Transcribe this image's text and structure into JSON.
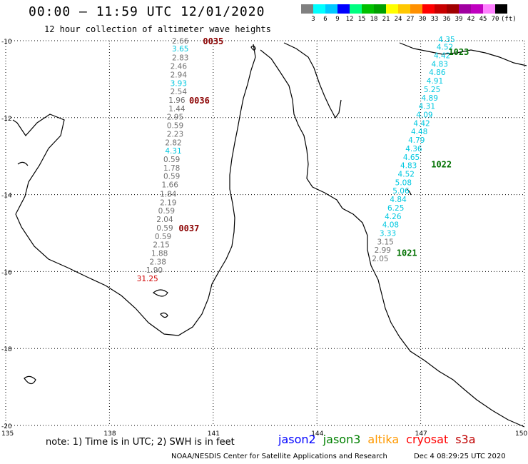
{
  "title": "00:00 – 11:59 UTC 12/01/2020",
  "subtitle": "12 hour collection of altimeter wave heights",
  "colorbar": {
    "labels": [
      "3",
      "6",
      "9",
      "12",
      "15",
      "18",
      "21",
      "24",
      "27",
      "30",
      "33",
      "36",
      "39",
      "42",
      "45",
      "70",
      "(ft)"
    ],
    "colors": [
      "#808080",
      "#00ffff",
      "#00c8ff",
      "#0000ff",
      "#00ff80",
      "#00c000",
      "#00a000",
      "#ffff00",
      "#ffc800",
      "#ff9000",
      "#ff0000",
      "#c80000",
      "#a00000",
      "#a000a0",
      "#c000c0",
      "#ff80ff",
      "#000000"
    ]
  },
  "axes": {
    "lat_labels": [
      "-10",
      "-12",
      "-14",
      "-16",
      "-18",
      "-20"
    ],
    "lon_labels": [
      "135",
      "138",
      "141",
      "144",
      "147",
      "150"
    ]
  },
  "tracks": [
    {
      "name": "western-pass",
      "color_default": "#707070",
      "points": [
        {
          "lat": -10.0,
          "lon": 140.05,
          "v": "2.66",
          "c": "#707070"
        },
        {
          "lat": -10.2,
          "lon": 140.05,
          "v": "3.65",
          "c": "#00c8e0"
        },
        {
          "lat": -10.44,
          "lon": 140.05,
          "v": "2.83",
          "c": "#707070"
        },
        {
          "lat": -10.66,
          "lon": 140.0,
          "v": "2.46",
          "c": "#707070"
        },
        {
          "lat": -10.88,
          "lon": 140.0,
          "v": "2.94",
          "c": "#707070"
        },
        {
          "lat": -11.1,
          "lon": 140.0,
          "v": "3.93",
          "c": "#00c8e0"
        },
        {
          "lat": -11.32,
          "lon": 140.0,
          "v": "2.54",
          "c": "#707070"
        },
        {
          "lat": -11.54,
          "lon": 139.95,
          "v": "1.96",
          "c": "#707070"
        },
        {
          "lat": -11.76,
          "lon": 139.95,
          "v": "1.44",
          "c": "#707070"
        },
        {
          "lat": -11.98,
          "lon": 139.9,
          "v": "2.95",
          "c": "#707070"
        },
        {
          "lat": -12.2,
          "lon": 139.9,
          "v": "0.59",
          "c": "#707070"
        },
        {
          "lat": -12.42,
          "lon": 139.9,
          "v": "2.23",
          "c": "#707070"
        },
        {
          "lat": -12.64,
          "lon": 139.85,
          "v": "2.82",
          "c": "#707070"
        },
        {
          "lat": -12.86,
          "lon": 139.85,
          "v": "4.31",
          "c": "#00c8e0"
        },
        {
          "lat": -13.08,
          "lon": 139.8,
          "v": "0.59",
          "c": "#707070"
        },
        {
          "lat": -13.3,
          "lon": 139.8,
          "v": "1.78",
          "c": "#707070"
        },
        {
          "lat": -13.52,
          "lon": 139.8,
          "v": "0.59",
          "c": "#707070"
        },
        {
          "lat": -13.74,
          "lon": 139.75,
          "v": "1.66",
          "c": "#707070"
        },
        {
          "lat": -13.98,
          "lon": 139.7,
          "v": "1.84",
          "c": "#707070"
        },
        {
          "lat": -14.2,
          "lon": 139.7,
          "v": "2.19",
          "c": "#707070"
        },
        {
          "lat": -14.42,
          "lon": 139.65,
          "v": "0.59",
          "c": "#707070"
        },
        {
          "lat": -14.64,
          "lon": 139.6,
          "v": "2.04",
          "c": "#707070"
        },
        {
          "lat": -14.86,
          "lon": 139.6,
          "v": "0.59",
          "c": "#707070"
        },
        {
          "lat": -15.08,
          "lon": 139.55,
          "v": "0.59",
          "c": "#707070"
        },
        {
          "lat": -15.3,
          "lon": 139.5,
          "v": "2.15",
          "c": "#707070"
        },
        {
          "lat": -15.52,
          "lon": 139.45,
          "v": "1.88",
          "c": "#707070"
        },
        {
          "lat": -15.74,
          "lon": 139.4,
          "v": "2.38",
          "c": "#707070"
        },
        {
          "lat": -15.96,
          "lon": 139.3,
          "v": "1.90",
          "c": "#707070"
        },
        {
          "lat": -16.18,
          "lon": 139.1,
          "v": "31.25",
          "c": "#d00000"
        }
      ],
      "time_labels": [
        {
          "lat": -10.0,
          "lon": 141.0,
          "t": "0035"
        },
        {
          "lat": -11.54,
          "lon": 140.6,
          "t": "0036"
        },
        {
          "lat": -14.86,
          "lon": 140.3,
          "t": "0037"
        }
      ],
      "time_color": "#8b0000"
    },
    {
      "name": "eastern-pass",
      "points": [
        {
          "lat": -9.96,
          "lon": 147.75,
          "v": "4.35",
          "c": "#00c8e0"
        },
        {
          "lat": -10.16,
          "lon": 147.7,
          "v": "4.52",
          "c": "#00c8e0"
        },
        {
          "lat": -10.38,
          "lon": 147.62,
          "v": "4.42",
          "c": "#00c8e0"
        },
        {
          "lat": -10.6,
          "lon": 147.55,
          "v": "4.83",
          "c": "#00c8e0"
        },
        {
          "lat": -10.82,
          "lon": 147.48,
          "v": "4.86",
          "c": "#00c8e0"
        },
        {
          "lat": -11.04,
          "lon": 147.41,
          "v": "4.91",
          "c": "#00c8e0"
        },
        {
          "lat": -11.26,
          "lon": 147.33,
          "v": "5.25",
          "c": "#00c8e0"
        },
        {
          "lat": -11.48,
          "lon": 147.26,
          "v": "4.89",
          "c": "#00c8e0"
        },
        {
          "lat": -11.7,
          "lon": 147.18,
          "v": "4.31",
          "c": "#00c8e0"
        },
        {
          "lat": -11.92,
          "lon": 147.11,
          "v": "4.09",
          "c": "#00c8e0"
        },
        {
          "lat": -12.14,
          "lon": 147.03,
          "v": "4.42",
          "c": "#00c8e0"
        },
        {
          "lat": -12.36,
          "lon": 146.96,
          "v": "4.48",
          "c": "#00c8e0"
        },
        {
          "lat": -12.58,
          "lon": 146.88,
          "v": "4.79",
          "c": "#00c8e0"
        },
        {
          "lat": -12.8,
          "lon": 146.8,
          "v": "4.36",
          "c": "#00c8e0"
        },
        {
          "lat": -13.02,
          "lon": 146.73,
          "v": "4.65",
          "c": "#00c8e0"
        },
        {
          "lat": -13.24,
          "lon": 146.65,
          "v": "4.83",
          "c": "#00c8e0"
        },
        {
          "lat": -13.46,
          "lon": 146.58,
          "v": "4.52",
          "c": "#00c8e0"
        },
        {
          "lat": -13.68,
          "lon": 146.5,
          "v": "5.08",
          "c": "#00c8e0"
        },
        {
          "lat": -13.9,
          "lon": 146.43,
          "v": "5.06",
          "c": "#00c8e0"
        },
        {
          "lat": -14.12,
          "lon": 146.35,
          "v": "4.84",
          "c": "#00c8e0"
        },
        {
          "lat": -14.34,
          "lon": 146.28,
          "v": "6.25",
          "c": "#00c8e0"
        },
        {
          "lat": -14.56,
          "lon": 146.2,
          "v": "4.26",
          "c": "#00c8e0"
        },
        {
          "lat": -14.78,
          "lon": 146.13,
          "v": "4.08",
          "c": "#00c8e0"
        },
        {
          "lat": -15.0,
          "lon": 146.05,
          "v": "3.33",
          "c": "#00c8e0"
        },
        {
          "lat": -15.22,
          "lon": 145.98,
          "v": "3.15",
          "c": "#707070"
        },
        {
          "lat": -15.44,
          "lon": 145.9,
          "v": "2.99",
          "c": "#707070"
        },
        {
          "lat": -15.66,
          "lon": 145.83,
          "v": "2.05",
          "c": "#707070"
        }
      ],
      "time_labels": [
        {
          "lat": -10.28,
          "lon": 148.1,
          "t": "1023"
        },
        {
          "lat": -13.2,
          "lon": 147.6,
          "t": "1022"
        },
        {
          "lat": -15.5,
          "lon": 146.6,
          "t": "1021"
        }
      ],
      "time_color": "#007000"
    }
  ],
  "note": "note: 1) Time is in UTC; 2) SWH is in feet",
  "satellites": [
    {
      "name": "jason2",
      "color": "#0000ff"
    },
    {
      "name": "jason3",
      "color": "#008000"
    },
    {
      "name": "altika",
      "color": "#ff9900"
    },
    {
      "name": "cryosat",
      "color": "#ff0000"
    },
    {
      "name": "s3a",
      "color": "#c00000"
    }
  ],
  "credit": "NOAA/NESDIS Center for Satellite Applications and Research",
  "stamp": "Dec  4 08:29:25 UTC 2020"
}
